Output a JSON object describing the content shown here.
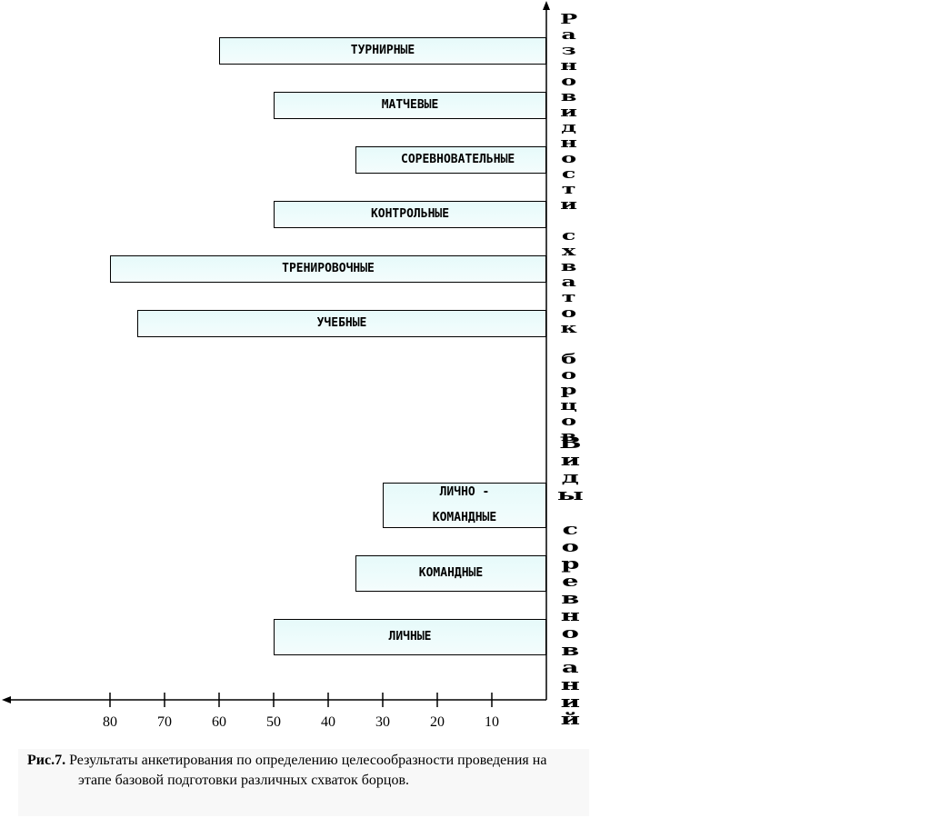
{
  "chart_data": {
    "type": "bar",
    "groups": [
      {
        "label": "Разновидности схваток борцов",
        "categories": [
          "ТУРНИРНЫЕ",
          "МАТЧЕВЫЕ",
          "СОРЕВНОВАТЕЛЬНЫЕ",
          "КОНТРОЛЬНЫЕ",
          "ТРЕНИРОВОЧНЫЕ",
          "УЧЕБНЫЕ"
        ],
        "values": [
          60,
          50,
          35,
          50,
          80,
          75
        ]
      },
      {
        "label": "Виды соревнований",
        "categories": [
          "ЛИЧНО - КОМАНДНЫЕ",
          "КОМАНДНЫЕ",
          "ЛИЧНЫЕ"
        ],
        "values": [
          30,
          35,
          50
        ]
      }
    ],
    "xlim": [
      0,
      100
    ],
    "xticks": [
      80,
      70,
      60,
      50,
      40,
      30,
      20,
      10
    ],
    "caption_label": "Рис.7.",
    "caption": "Результаты анкетирования по определению целесообразности проведения на этапе базовой подготовки различных схваток борцов."
  }
}
